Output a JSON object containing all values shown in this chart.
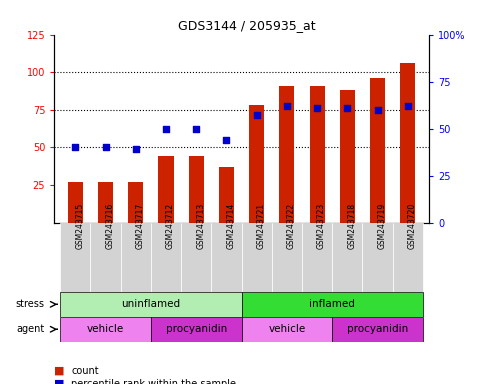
{
  "title": "GDS3144 / 205935_at",
  "samples": [
    "GSM243715",
    "GSM243716",
    "GSM243717",
    "GSM243712",
    "GSM243713",
    "GSM243714",
    "GSM243721",
    "GSM243722",
    "GSM243723",
    "GSM243718",
    "GSM243719",
    "GSM243720"
  ],
  "counts": [
    27,
    27,
    27,
    44,
    44,
    37,
    78,
    91,
    91,
    88,
    96,
    106
  ],
  "percentiles": [
    40,
    40,
    39,
    50,
    50,
    44,
    57,
    62,
    61,
    61,
    60,
    62
  ],
  "ylim_left": [
    0,
    125
  ],
  "ylim_right": [
    0,
    100
  ],
  "yticks_left": [
    25,
    50,
    75,
    100,
    125
  ],
  "yticks_right": [
    0,
    25,
    50,
    75,
    100
  ],
  "ytick_right_labels": [
    "0",
    "25",
    "50",
    "75",
    "100%"
  ],
  "stress_groups": [
    {
      "label": "uninflamed",
      "start": 0,
      "end": 6,
      "color": "#B2EEB2"
    },
    {
      "label": "inflamed",
      "start": 6,
      "end": 12,
      "color": "#33DD33"
    }
  ],
  "agent_groups": [
    {
      "label": "vehicle",
      "start": 0,
      "end": 3,
      "color": "#EE82EE"
    },
    {
      "label": "procyanidin",
      "start": 3,
      "end": 6,
      "color": "#CC33CC"
    },
    {
      "label": "vehicle",
      "start": 6,
      "end": 9,
      "color": "#EE82EE"
    },
    {
      "label": "procyanidin",
      "start": 9,
      "end": 12,
      "color": "#CC33CC"
    }
  ],
  "bar_color": "#CC2200",
  "dot_color": "#0000CC",
  "bar_width": 0.5,
  "sample_bg": "#D3D3D3",
  "legend_items": [
    {
      "label": "count",
      "color": "#CC2200"
    },
    {
      "label": "percentile rank within the sample",
      "color": "#0000CC"
    }
  ]
}
